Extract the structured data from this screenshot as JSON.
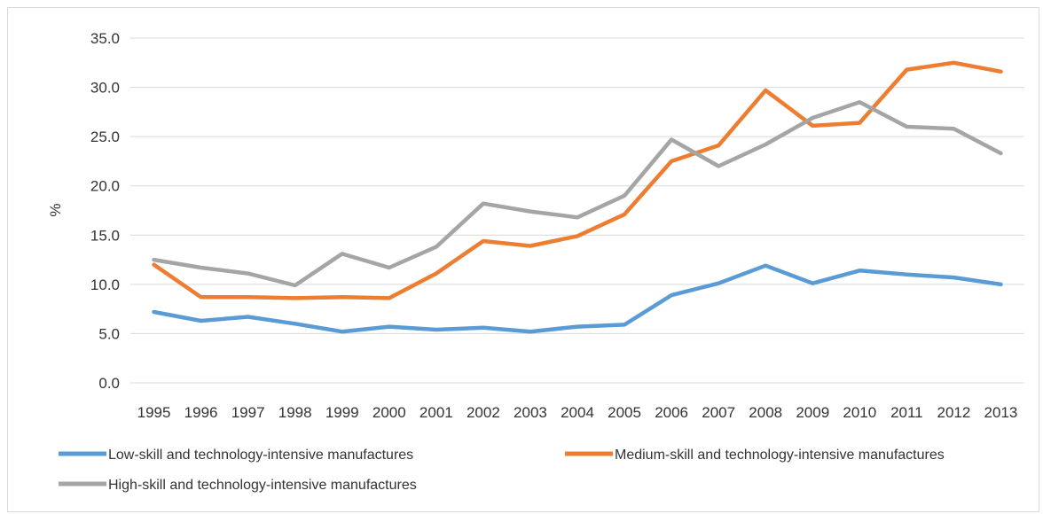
{
  "chart_data": {
    "type": "line",
    "title": "",
    "xlabel": "",
    "ylabel": "%",
    "ylim": [
      0,
      35
    ],
    "yticks": [
      "0.0",
      "5.0",
      "10.0",
      "15.0",
      "20.0",
      "25.0",
      "30.0",
      "35.0"
    ],
    "categories": [
      "1995",
      "1996",
      "1997",
      "1998",
      "1999",
      "2000",
      "2001",
      "2002",
      "2003",
      "2004",
      "2005",
      "2006",
      "2007",
      "2008",
      "2009",
      "2010",
      "2011",
      "2012",
      "2013"
    ],
    "grid": "horizontal",
    "legend_position": "bottom",
    "series": [
      {
        "name": "Low-skill and technology-intensive manufactures",
        "color": "#5b9bd5",
        "values": [
          7.2,
          6.3,
          6.7,
          6.0,
          5.2,
          5.7,
          5.4,
          5.6,
          5.2,
          5.7,
          5.9,
          8.9,
          10.1,
          11.9,
          10.1,
          11.4,
          11.0,
          10.7,
          10.0
        ]
      },
      {
        "name": "Medium-skill and technology-intensive manufactures",
        "color": "#ed7d31",
        "values": [
          12.0,
          8.7,
          8.7,
          8.6,
          8.7,
          8.6,
          11.1,
          14.4,
          13.9,
          14.9,
          17.1,
          22.5,
          24.1,
          29.7,
          26.1,
          26.4,
          31.8,
          32.5,
          31.6
        ]
      },
      {
        "name": "High-skill and technology-intensive manufactures",
        "color": "#a5a5a5",
        "values": [
          12.5,
          11.7,
          11.1,
          9.9,
          13.1,
          11.7,
          13.8,
          18.2,
          17.4,
          16.8,
          19.0,
          24.7,
          22.0,
          24.2,
          26.9,
          28.5,
          26.0,
          25.8,
          23.3
        ]
      }
    ]
  }
}
